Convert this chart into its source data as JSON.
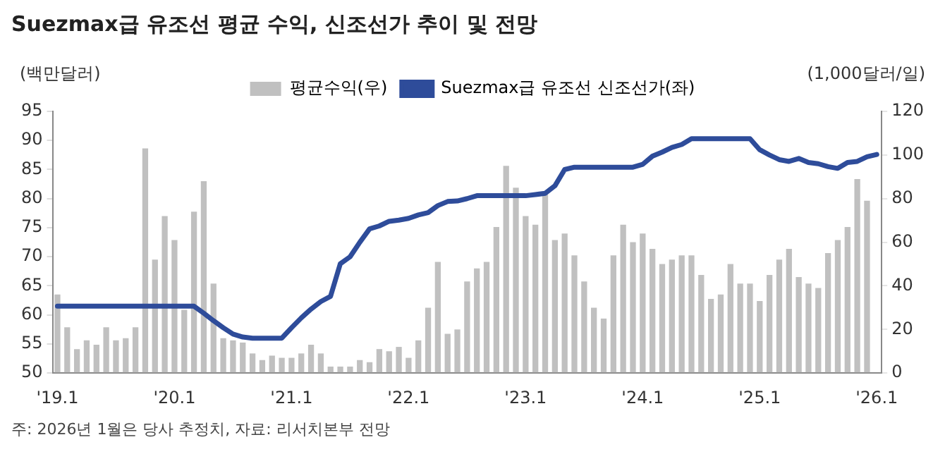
{
  "chart_data": {
    "type": "bar",
    "title": "Suezmax급 유조선 평균 수익, 신조선가 추이 및 전망",
    "ylabel": "(백만달러)",
    "y2label": "(1,000달러/일)",
    "categories": [
      "'19.1",
      null,
      null,
      null,
      null,
      null,
      null,
      null,
      null,
      null,
      null,
      null,
      "'20.1",
      null,
      null,
      null,
      null,
      null,
      null,
      null,
      null,
      null,
      null,
      null,
      "'21.1",
      null,
      null,
      null,
      null,
      null,
      null,
      null,
      null,
      null,
      null,
      null,
      "'22.1",
      null,
      null,
      null,
      null,
      null,
      null,
      null,
      null,
      null,
      null,
      null,
      "'23.1",
      null,
      null,
      null,
      null,
      null,
      null,
      null,
      null,
      null,
      null,
      null,
      "'24.1",
      null,
      null,
      null,
      null,
      null,
      null,
      null,
      null,
      null,
      null,
      null,
      "'25.1",
      null,
      null,
      null,
      null,
      null,
      null,
      null,
      null,
      null,
      null,
      null,
      "'26.1"
    ],
    "series": [
      {
        "name": "평균수익(우)",
        "axis": "y2",
        "color": "#c0c0c0",
        "values": [
          36,
          21,
          11,
          15,
          13,
          21,
          15,
          16,
          21,
          103,
          52,
          72,
          61,
          29,
          74,
          88,
          41,
          16,
          15,
          14,
          9,
          6,
          8,
          7,
          7,
          9,
          13,
          9,
          3,
          3,
          3,
          6,
          5,
          11,
          10,
          12,
          7,
          15,
          30,
          51,
          18,
          20,
          42,
          48,
          51,
          67,
          95,
          85,
          72,
          68,
          82,
          61,
          64,
          54,
          42,
          30,
          25,
          54,
          68,
          60,
          64,
          57,
          50,
          52,
          54,
          54,
          45,
          34,
          36,
          50,
          41,
          41,
          33,
          45,
          52,
          57,
          44,
          41,
          39,
          55,
          61,
          67,
          89,
          79,
          null
        ]
      },
      {
        "name": "Suezmax급 유조선 신조선가(좌)",
        "type": "line",
        "axis": "y",
        "color": "#2e4c9a",
        "values": [
          61.5,
          61.5,
          61.5,
          61.5,
          61.5,
          61.5,
          61.5,
          61.5,
          61.5,
          61.5,
          61.5,
          61.5,
          61.5,
          61.5,
          61.5,
          60.3,
          59,
          57.8,
          56.7,
          56.2,
          56,
          56,
          56,
          56,
          57.8,
          59.5,
          61,
          62.3,
          63.2,
          68.8,
          70,
          72.5,
          74.8,
          75.3,
          76.1,
          76.3,
          76.6,
          77.2,
          77.6,
          78.8,
          79.5,
          79.6,
          80,
          80.5,
          80.5,
          80.5,
          80.5,
          80.5,
          80.5,
          80.7,
          80.9,
          82.2,
          85,
          85.4,
          85.4,
          85.4,
          85.4,
          85.4,
          85.4,
          85.4,
          85.9,
          87.3,
          88,
          88.8,
          89.3,
          90.3,
          90.3,
          90.3,
          90.3,
          90.3,
          90.3,
          90.3,
          88.4,
          87.5,
          86.7,
          86.4,
          86.9,
          86.2,
          86,
          85.5,
          85.2,
          86.2,
          86.4,
          87.2,
          87.6
        ]
      }
    ],
    "ylim": [
      50,
      95
    ],
    "yticks": [
      50,
      55,
      60,
      65,
      70,
      75,
      80,
      85,
      90,
      95
    ],
    "y2lim": [
      0,
      120
    ],
    "y2ticks": [
      0,
      20,
      40,
      60,
      80,
      100,
      120
    ],
    "grid": false,
    "legend": "top",
    "annotations": [
      "주: 2026년 1월은 당사 추정치, 자료: 리서치본부 전망"
    ]
  }
}
